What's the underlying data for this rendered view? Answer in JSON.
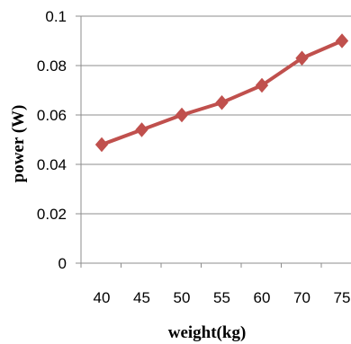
{
  "chart_data": {
    "type": "line",
    "categories": [
      "40",
      "45",
      "50",
      "55",
      "60",
      "70",
      "75"
    ],
    "series": [
      {
        "values": [
          0.048,
          0.054,
          0.06,
          0.065,
          0.072,
          0.083,
          0.09
        ],
        "color": "#c0504d"
      }
    ],
    "y_ticks": [
      "0",
      "0.02",
      "0.04",
      "0.06",
      "0.08",
      "0.1"
    ],
    "ylim": [
      0,
      0.1
    ],
    "xlabel": "weight(kg)",
    "ylabel": "power (W)",
    "grid": true,
    "marker": "diamond"
  }
}
